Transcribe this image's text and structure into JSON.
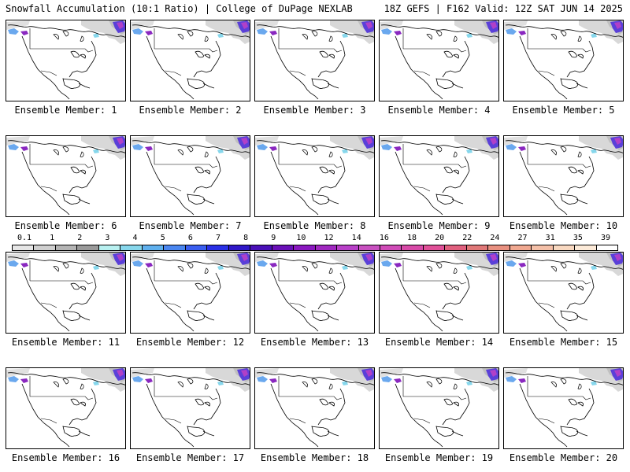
{
  "header": {
    "left": "Snowfall Accumulation (10:1 Ratio) | College of DuPage NEXLAB",
    "right": "18Z GEFS | F162 Valid: 12Z SAT JUN 14 2025"
  },
  "panels": [
    {
      "label": "Ensemble Member: 1"
    },
    {
      "label": "Ensemble Member: 2"
    },
    {
      "label": "Ensemble Member: 3"
    },
    {
      "label": "Ensemble Member: 4"
    },
    {
      "label": "Ensemble Member: 5"
    },
    {
      "label": "Ensemble Member: 6"
    },
    {
      "label": "Ensemble Member: 7"
    },
    {
      "label": "Ensemble Member: 8"
    },
    {
      "label": "Ensemble Member: 9"
    },
    {
      "label": "Ensemble Member: 10"
    },
    {
      "label": "Ensemble Member: 11"
    },
    {
      "label": "Ensemble Member: 12"
    },
    {
      "label": "Ensemble Member: 13"
    },
    {
      "label": "Ensemble Member: 14"
    },
    {
      "label": "Ensemble Member: 15"
    },
    {
      "label": "Ensemble Member: 16"
    },
    {
      "label": "Ensemble Member: 17"
    },
    {
      "label": "Ensemble Member: 18"
    },
    {
      "label": "Ensemble Member: 19"
    },
    {
      "label": "Ensemble Member: 20"
    }
  ],
  "colorbar": {
    "labels": [
      "0.1",
      "1",
      "2",
      "3",
      "4",
      "5",
      "6",
      "7",
      "8",
      "9",
      "10",
      "12",
      "14",
      "16",
      "18",
      "20",
      "22",
      "24",
      "27",
      "31",
      "35",
      "39"
    ],
    "colors": [
      "#e6e6e6",
      "#cfcfcf",
      "#b4b4b4",
      "#9a9a9a",
      "#b8f0f0",
      "#87d7ec",
      "#5fb0ee",
      "#4a86f0",
      "#3a5ef0",
      "#2a30e6",
      "#3018c8",
      "#4a10b8",
      "#6a10b8",
      "#8a18c0",
      "#a028c0",
      "#b840c8",
      "#c850c0",
      "#d04cb8",
      "#d84aa8",
      "#e05098",
      "#e0607e",
      "#e07878",
      "#e89080",
      "#f0a890",
      "#f4c0a8",
      "#f8d8c0",
      "#fcead8",
      "#ffffff"
    ]
  }
}
